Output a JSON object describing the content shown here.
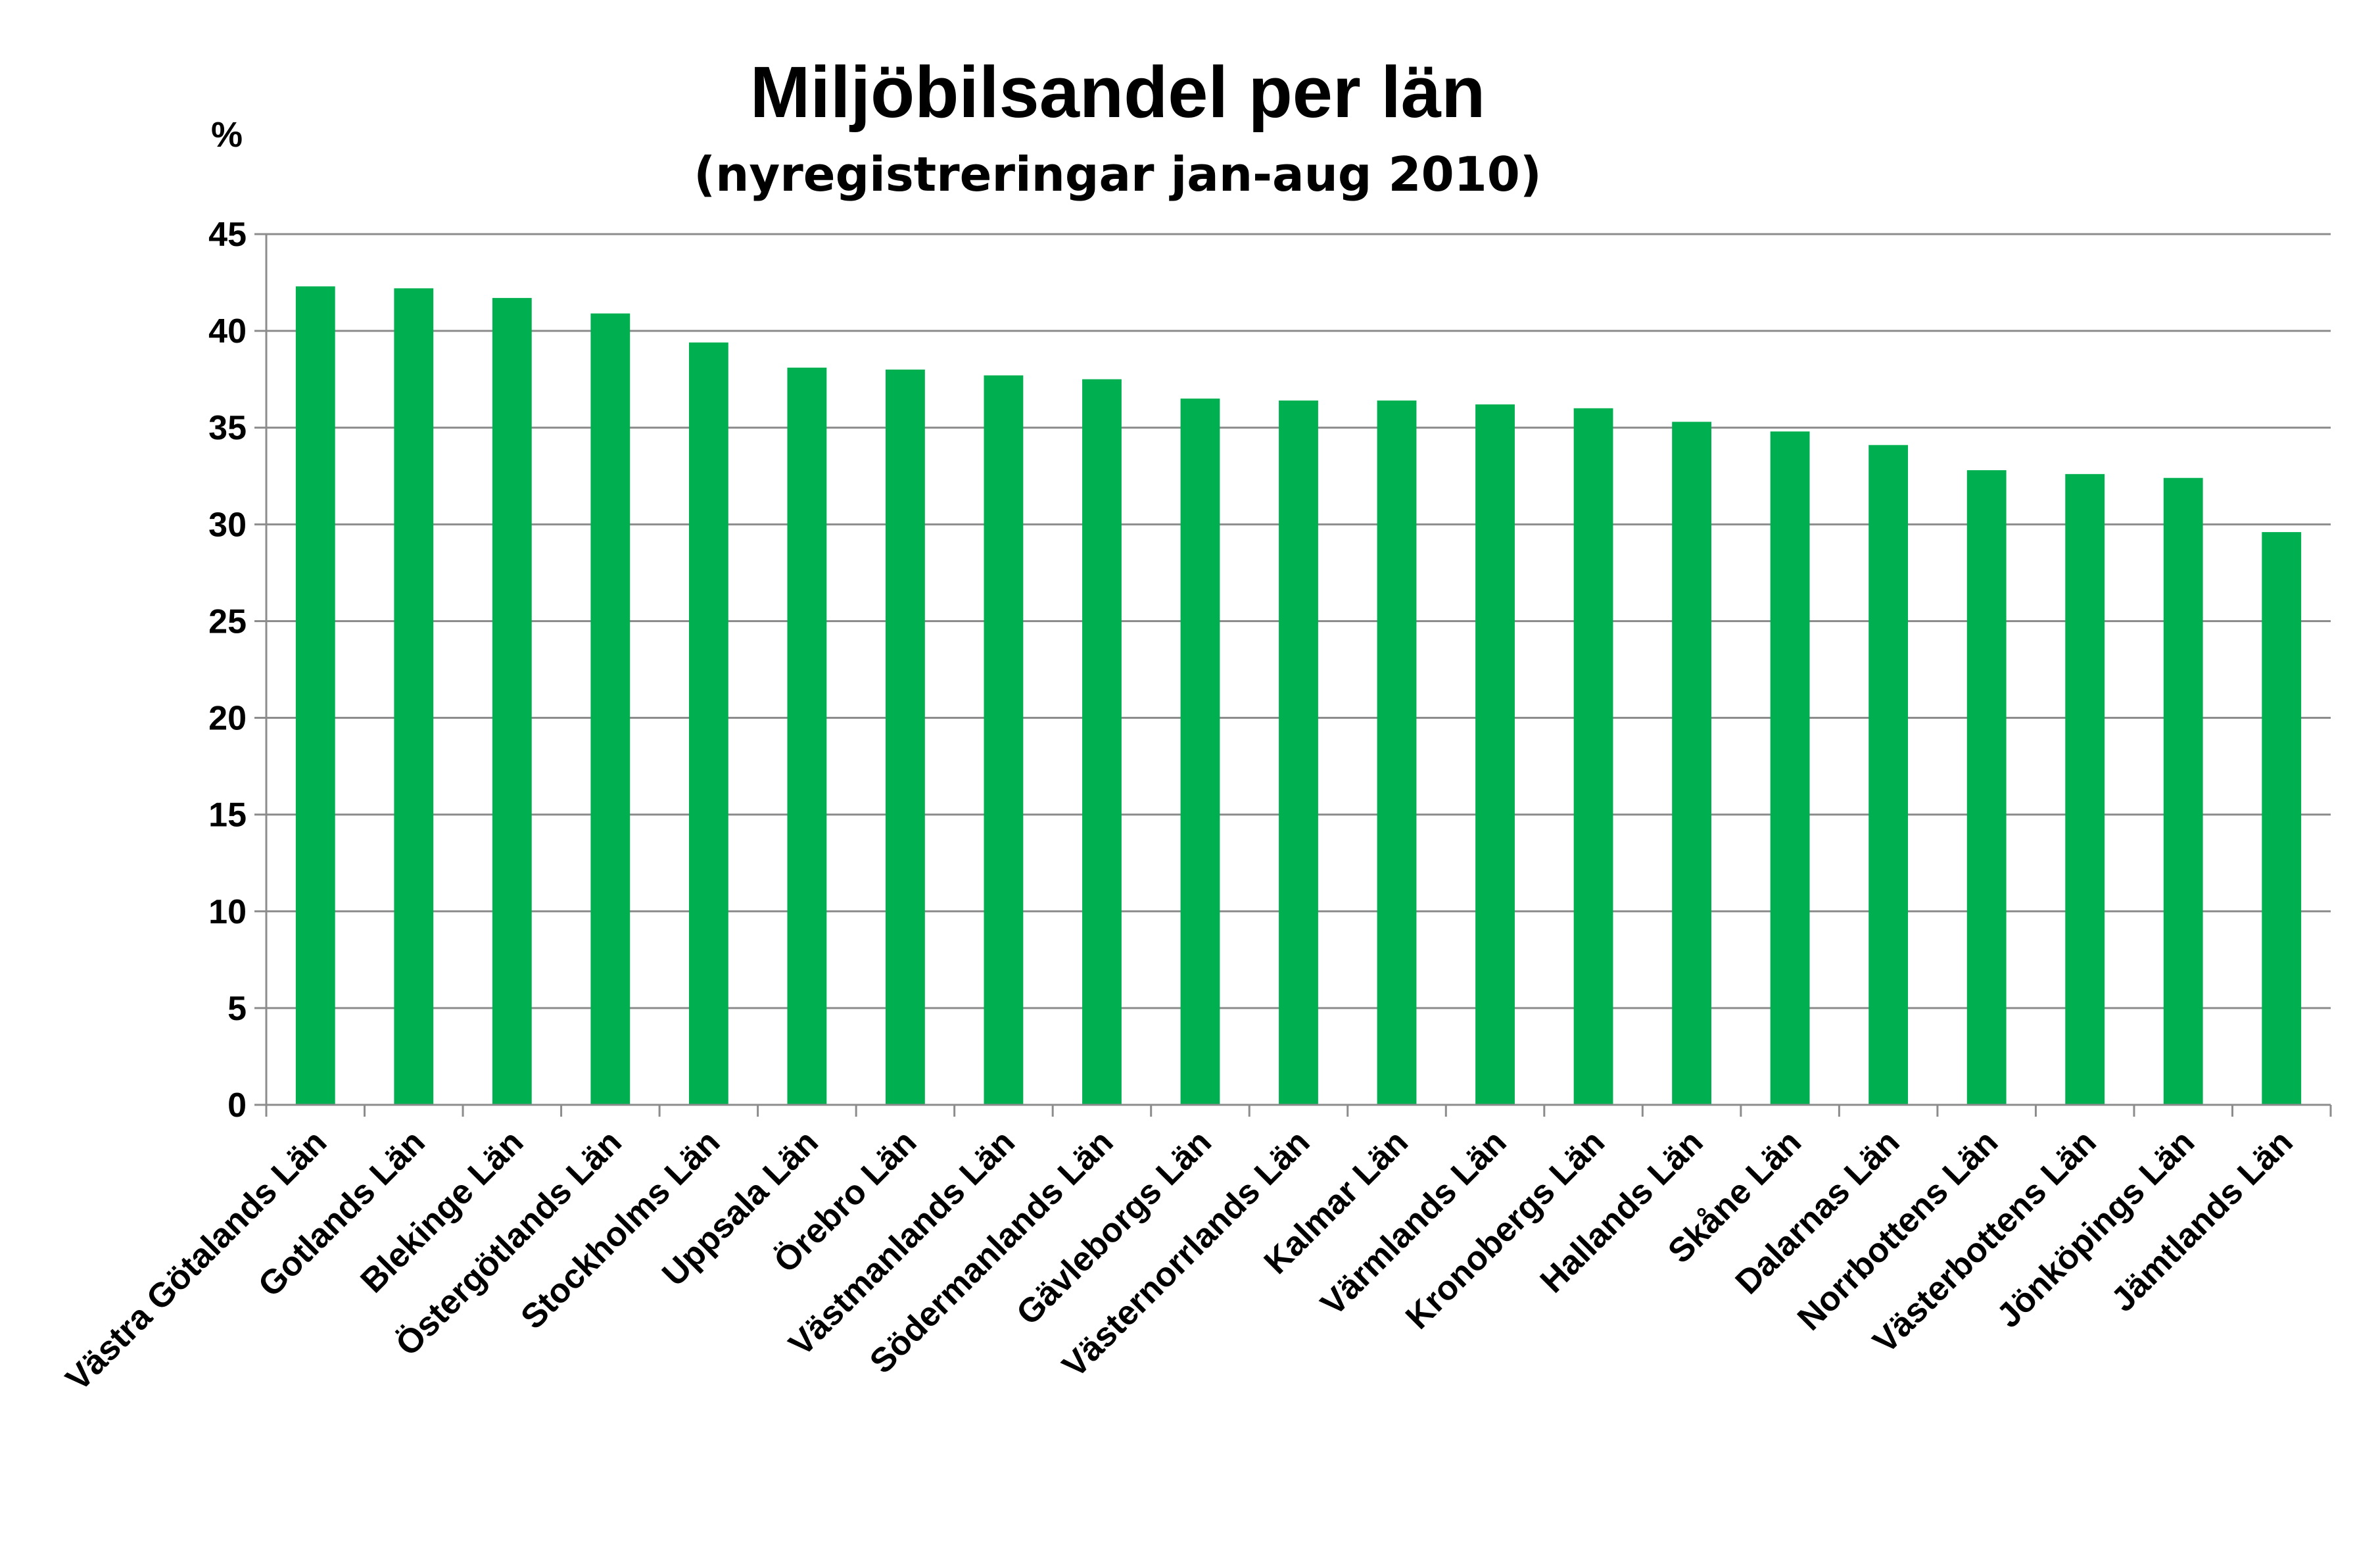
{
  "chart_data": {
    "type": "bar",
    "title": "Miljöbilsandel per län",
    "subtitle": "(nyregistreringar jan-aug 2010)",
    "ylabel": "%",
    "xlabel": "",
    "ylim": [
      0,
      45
    ],
    "yticks": [
      0,
      5,
      10,
      15,
      20,
      25,
      30,
      35,
      40,
      45
    ],
    "grid": true,
    "legend": "none",
    "bar_color": "#00B050",
    "categories": [
      "Västra Götalands Län",
      "Gotlands Län",
      "Blekinge Län",
      "Östergötlands Län",
      "Stockholms Län",
      "Uppsala Län",
      "Örebro Län",
      "Västmanlands Län",
      "Södermanlands Län",
      "Gävleborgs Län",
      "Västernorrlands Län",
      "Kalmar Län",
      "Värmlands Län",
      "Kronobergs Län",
      "Hallands Län",
      "Skåne Län",
      "Dalarnas Län",
      "Norrbottens Län",
      "Västerbottens Län",
      "Jönköpings Län",
      "Jämtlands Län"
    ],
    "values": [
      42.3,
      42.2,
      41.7,
      40.9,
      39.4,
      38.1,
      38.0,
      37.7,
      37.5,
      36.5,
      36.4,
      36.4,
      36.2,
      36.0,
      35.3,
      34.8,
      34.1,
      32.8,
      32.6,
      32.4,
      29.6
    ]
  }
}
